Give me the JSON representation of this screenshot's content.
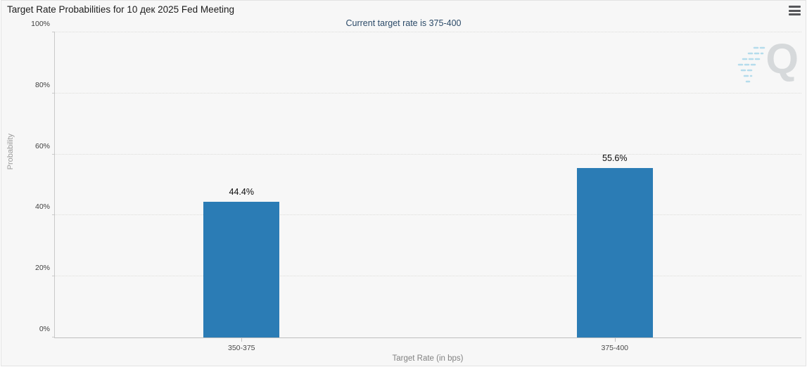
{
  "header": {
    "title": "Target Rate Probabilities for 10 дек 2025 Fed Meeting",
    "menu_tooltip": "Chart context menu"
  },
  "chart_data": {
    "type": "bar",
    "title": "Target Rate Probabilities for 10 дек 2025 Fed Meeting",
    "subtitle": "Current target rate is 375-400",
    "categories": [
      "350-375",
      "375-400"
    ],
    "values": [
      44.4,
      55.6
    ],
    "value_labels": [
      "44.4%",
      "55.6%"
    ],
    "xlabel": "Target Rate (in bps)",
    "ylabel": "Probability",
    "ylim": [
      0,
      100
    ],
    "ytick_values": [
      0,
      20,
      40,
      60,
      80,
      100
    ],
    "ytick_labels": [
      "0%",
      "20%",
      "40%",
      "60%",
      "80%",
      "100%"
    ],
    "grid": "dotted horizontal gridlines at each y tick",
    "legend": "none",
    "bar_color": "#2b7cb5",
    "subtitle_color": "#2b4a68",
    "watermark_letter": "Q"
  }
}
